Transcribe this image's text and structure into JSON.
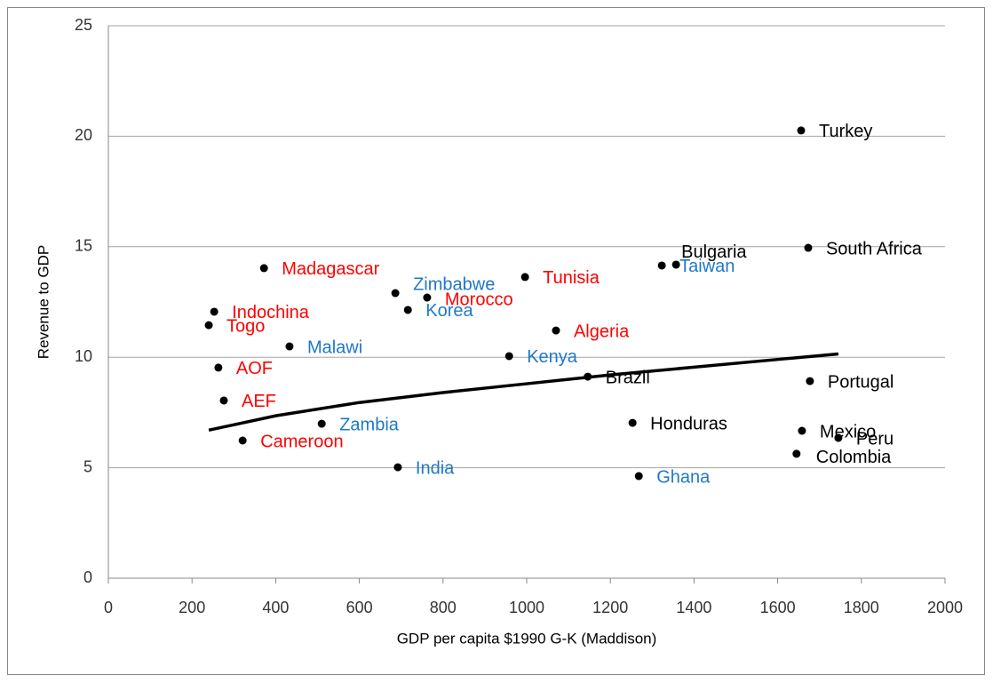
{
  "chart_data": {
    "type": "scatter",
    "xlabel": "GDP per capita $1990 G-K (Maddison)",
    "ylabel": "Revenue to GDP",
    "xlim": [
      0,
      2000
    ],
    "xticks": [
      0,
      200,
      400,
      600,
      800,
      1000,
      1200,
      1400,
      1600,
      1800,
      2000
    ],
    "ylim": [
      0,
      25
    ],
    "yticks": [
      0,
      5,
      10,
      15,
      20,
      25
    ],
    "grid": true,
    "series": [
      {
        "color": "#ff0000",
        "labels": [
          "Madagascar",
          "Tunisia",
          "Morocco",
          "Indochina",
          "Togo",
          "Algeria",
          "AOF",
          "AEF",
          "Cameroon"
        ],
        "x": [
          372,
          996,
          762,
          253,
          240,
          1070,
          263,
          276,
          321
        ],
        "values": [
          14.03,
          13.63,
          12.7,
          12.06,
          11.45,
          11.21,
          9.53,
          8.04,
          6.23
        ]
      },
      {
        "color": "#1f78c8",
        "labels": [
          "Taiwan",
          "Zimbabwe",
          "Korea",
          "Malawi",
          "Kenya",
          "Zambia",
          "India",
          "Ghana"
        ],
        "x": [
          1357,
          686,
          716,
          433,
          958,
          510,
          692,
          1268
        ],
        "values": [
          14.19,
          12.9,
          12.14,
          10.49,
          10.05,
          6.99,
          5.02,
          4.62
        ]
      },
      {
        "color": "#000000",
        "labels": [
          "Turkey",
          "South Africa",
          "Bulgaria",
          "Brazil",
          "Portugal",
          "Honduras",
          "Mexico",
          "Peru",
          "Colombia"
        ],
        "x": [
          1656,
          1673,
          1323,
          1146,
          1677,
          1253,
          1658,
          1745,
          1645
        ],
        "values": [
          20.26,
          14.95,
          14.15,
          9.12,
          8.92,
          7.03,
          6.67,
          6.35,
          5.63
        ]
      }
    ],
    "trendline": {
      "color": "#000000",
      "x": [
        240,
        400,
        600,
        800,
        1000,
        1200,
        1400,
        1600,
        1745
      ],
      "values": [
        6.7,
        7.35,
        7.95,
        8.4,
        8.8,
        9.2,
        9.55,
        9.9,
        10.15
      ]
    }
  }
}
